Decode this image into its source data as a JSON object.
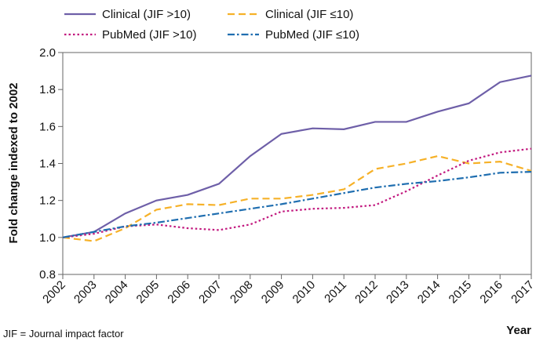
{
  "chart_data": {
    "type": "line",
    "ylabel": "Fold change indexed to 2002",
    "xlabel": "Year",
    "footnote": "JIF = Journal impact factor",
    "categories": [
      "2002",
      "2003",
      "2004",
      "2005",
      "2006",
      "2007",
      "2008",
      "2009",
      "2010",
      "2011",
      "2012",
      "2013",
      "2014",
      "2015",
      "2016",
      "2017"
    ],
    "series": [
      {
        "name": "Clinical (JIF >10)",
        "color": "#6e5fa8",
        "linestyle": "solid",
        "values": [
          1.0,
          1.03,
          1.13,
          1.2,
          1.23,
          1.29,
          1.44,
          1.56,
          1.59,
          1.585,
          1.625,
          1.625,
          1.68,
          1.725,
          1.84,
          1.875
        ]
      },
      {
        "name": "Clinical (JIF ≤10)",
        "color": "#f6b128",
        "linestyle": "dashed",
        "values": [
          1.0,
          0.98,
          1.05,
          1.15,
          1.18,
          1.175,
          1.21,
          1.21,
          1.23,
          1.26,
          1.37,
          1.4,
          1.44,
          1.4,
          1.41,
          1.36
        ]
      },
      {
        "name": "PubMed (JIF >10)",
        "color": "#c2197f",
        "linestyle": "dotted",
        "values": [
          1.0,
          1.02,
          1.06,
          1.07,
          1.05,
          1.04,
          1.07,
          1.14,
          1.155,
          1.16,
          1.175,
          1.25,
          1.335,
          1.415,
          1.46,
          1.48
        ]
      },
      {
        "name": "PubMed (JIF ≤10)",
        "color": "#1f6eb0",
        "linestyle": "dashdot",
        "values": [
          1.0,
          1.03,
          1.06,
          1.08,
          1.105,
          1.13,
          1.155,
          1.18,
          1.21,
          1.24,
          1.27,
          1.29,
          1.305,
          1.325,
          1.35,
          1.355
        ]
      }
    ],
    "ylim": [
      0.8,
      2.0
    ],
    "yticks": [
      0.8,
      {
        "value": 1,
        "label": "1.0"
      },
      1.2,
      1.4,
      1.6,
      1.8,
      {
        "value": 2,
        "label": "2.0"
      }
    ],
    "grid": false,
    "legend": "top"
  }
}
